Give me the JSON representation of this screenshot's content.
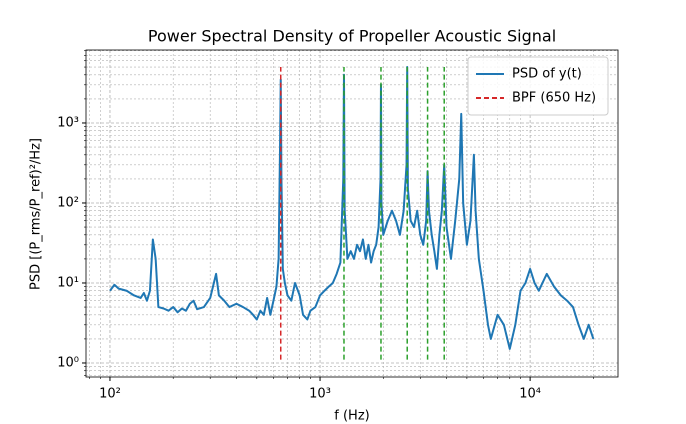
{
  "chart_data": {
    "type": "line",
    "title": "Power Spectral Density of Propeller Acoustic Signal",
    "xlabel": "f (Hz)",
    "ylabel": "PSD [(P_rms/P_ref)²/Hz]",
    "xscale": "log",
    "yscale": "log",
    "grid": true,
    "legend": "upper right",
    "xlim": [
      76.9,
      26200
    ],
    "ylim": [
      0.668,
      8170
    ],
    "xticks": [
      {
        "value": 100,
        "label": "10²"
      },
      {
        "value": 1000,
        "label": "10³"
      },
      {
        "value": 10000,
        "label": "10⁴"
      }
    ],
    "yticks": [
      {
        "value": 1,
        "label": "10⁰"
      },
      {
        "value": 10,
        "label": "10¹"
      },
      {
        "value": 100,
        "label": "10²"
      },
      {
        "value": 1000,
        "label": "10³"
      }
    ],
    "xminorticks": [
      80,
      90,
      200,
      300,
      400,
      500,
      600,
      700,
      800,
      900,
      2000,
      3000,
      4000,
      5000,
      6000,
      7000,
      8000,
      9000,
      20000
    ],
    "yminorticks": [
      0.7,
      0.8,
      0.9,
      2,
      3,
      4,
      5,
      6,
      7,
      8,
      9,
      20,
      30,
      40,
      50,
      60,
      70,
      80,
      90,
      200,
      300,
      400,
      500,
      600,
      700,
      800,
      900,
      2000,
      3000,
      4000,
      5000,
      6000,
      7000,
      8000
    ],
    "x": [
      100,
      105,
      110,
      120,
      130,
      140,
      145,
      150,
      155,
      160,
      165,
      170,
      180,
      190,
      200,
      210,
      220,
      230,
      240,
      250,
      260,
      280,
      300,
      320,
      330,
      350,
      370,
      400,
      430,
      460,
      480,
      500,
      520,
      540,
      560,
      580,
      600,
      620,
      635,
      645,
      650,
      655,
      665,
      680,
      700,
      730,
      760,
      800,
      830,
      870,
      900,
      950,
      1000,
      1050,
      1100,
      1150,
      1200,
      1250,
      1290,
      1300,
      1310,
      1350,
      1400,
      1450,
      1500,
      1550,
      1600,
      1650,
      1700,
      1750,
      1800,
      1850,
      1900,
      1940,
      1950,
      1960,
      2000,
      2100,
      2200,
      2300,
      2400,
      2500,
      2580,
      2600,
      2620,
      2700,
      2800,
      2900,
      3000,
      3100,
      3200,
      3250,
      3300,
      3400,
      3500,
      3600,
      3700,
      3800,
      3900,
      4000,
      4200,
      4400,
      4600,
      4700,
      4800,
      5000,
      5200,
      5400,
      5500,
      5700,
      6000,
      6300,
      6500,
      7000,
      7500,
      8000,
      8500,
      9000,
      9500,
      10000,
      10500,
      11000,
      12000,
      13000,
      14000,
      15000,
      16000,
      17000,
      18000,
      19000,
      20000
    ],
    "series": [
      {
        "name": "PSD of y(t)",
        "color": "#1f77b4",
        "values": [
          8,
          9.5,
          8.5,
          8,
          7,
          6.5,
          7.5,
          6,
          8,
          35,
          20,
          5,
          4.8,
          4.5,
          5,
          4.3,
          4.8,
          4.5,
          5.5,
          6,
          4.7,
          5,
          6.5,
          13,
          7,
          6,
          5,
          5.5,
          5,
          4.5,
          4,
          3.5,
          4.5,
          4,
          6.5,
          4,
          6,
          9,
          20,
          500,
          3500,
          200,
          15,
          10,
          7,
          6,
          10,
          7,
          4,
          3.5,
          4.5,
          5,
          7,
          8,
          9,
          10,
          13,
          18,
          200,
          4000,
          80,
          20,
          25,
          20,
          30,
          25,
          35,
          20,
          30,
          18,
          25,
          30,
          50,
          200,
          3000,
          100,
          40,
          60,
          80,
          60,
          40,
          80,
          300,
          5000,
          150,
          60,
          50,
          80,
          40,
          30,
          60,
          250,
          80,
          40,
          25,
          15,
          40,
          80,
          300,
          50,
          20,
          60,
          200,
          1300,
          100,
          30,
          60,
          400,
          80,
          20,
          8,
          3,
          2,
          4,
          3,
          1.5,
          3,
          8,
          10,
          15,
          10,
          8,
          13,
          9,
          7,
          6,
          5,
          3,
          2,
          3,
          2
        ]
      }
    ],
    "vlines": [
      {
        "name": "BPF (650 Hz)",
        "x": 650,
        "ymin": 1.1,
        "ymax": 5000,
        "color": "#d62728"
      },
      {
        "x": 1300,
        "ymin": 1.1,
        "ymax": 5000,
        "color": "#2ca02c"
      },
      {
        "x": 1950,
        "ymin": 1.1,
        "ymax": 5000,
        "color": "#2ca02c"
      },
      {
        "x": 2600,
        "ymin": 1.1,
        "ymax": 5000,
        "color": "#2ca02c"
      },
      {
        "x": 3250,
        "ymin": 1.1,
        "ymax": 5000,
        "color": "#2ca02c"
      },
      {
        "x": 3900,
        "ymin": 1.1,
        "ymax": 5000,
        "color": "#2ca02c"
      }
    ]
  }
}
